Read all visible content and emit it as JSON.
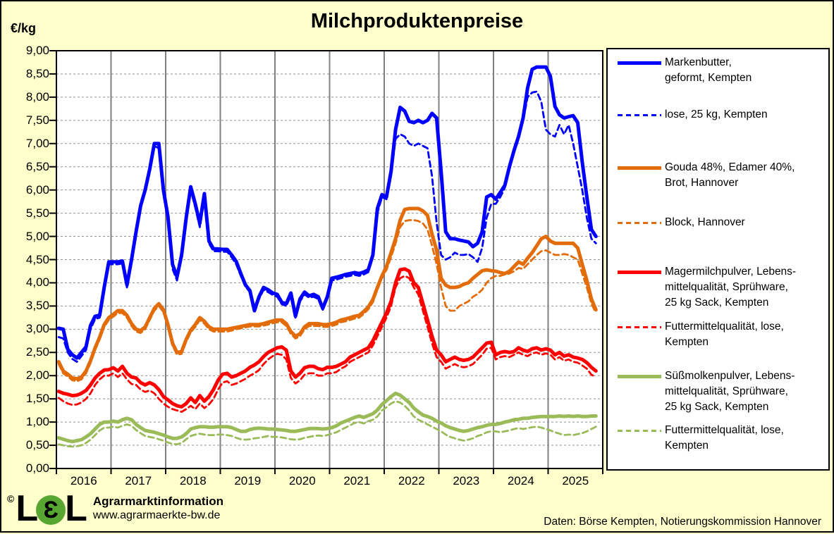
{
  "title": "Milchproduktenpreise",
  "y_axis": {
    "unit_label": "€/kg",
    "ticks": [
      "9,00",
      "8,50",
      "8,00",
      "7,50",
      "7,00",
      "6,50",
      "6,00",
      "5,50",
      "5,00",
      "4,50",
      "4,00",
      "3,50",
      "3,00",
      "2,50",
      "2,00",
      "1,50",
      "1,00",
      "0,50",
      "0,00"
    ]
  },
  "x_axis": {
    "ticks": [
      "2016",
      "2017",
      "2018",
      "2019",
      "2020",
      "2021",
      "2022",
      "2023",
      "2024",
      "2025"
    ]
  },
  "legend": {
    "items": [
      {
        "label": "Markenbutter,\ngeformt, Kempten",
        "color": "#0000FF",
        "style": "solid",
        "gap_after": 30
      },
      {
        "label": "lose, 25 kg, Kempten",
        "color": "#0000FF",
        "style": "dashed",
        "gap_after": 53
      },
      {
        "label": "Gouda 48%, Edamer 40%,\nBrot, Hannover",
        "color": "#E36C0A",
        "style": "solid",
        "gap_after": 34
      },
      {
        "label": "Block, Hannover",
        "color": "#E36C0A",
        "style": "dashed",
        "gap_after": 48
      },
      {
        "label": "Magermilchpulver, Lebens-\nmittelqualität, Sprühware,\n25 kg Sack, Kempten",
        "color": "#FF0000",
        "style": "solid",
        "gap_after": 12
      },
      {
        "label": "Futtermittelqualität, lose,\nKempten",
        "color": "#FF0000",
        "style": "dashed",
        "gap_after": 26
      },
      {
        "label": "Süßmolkenpulver, Lebens-\nmittelqualität, Sprühware,\n25 kg Sack, Kempten",
        "color": "#9BBB59",
        "style": "solid",
        "gap_after": 11
      },
      {
        "label": "Futtermittelqualität, lose,\nKempten",
        "color": "#9BBB59",
        "style": "dashed",
        "gap_after": 0
      }
    ]
  },
  "footer": {
    "copyright": "©",
    "logo_l1": "L",
    "logo_e": "Ɛ",
    "logo_l2": "L",
    "org": "Agrarmarktinformation",
    "url": "www.agrarmaerkte-bw.de",
    "source": "Daten: Börse Kempten, Notierungskommission  Hannover"
  },
  "chart_data": {
    "type": "line",
    "x_unit": "month",
    "x_start": "2016-01",
    "x_end": "2025-11",
    "x_years": [
      "2016",
      "2017",
      "2018",
      "2019",
      "2020",
      "2021",
      "2022",
      "2023",
      "2024",
      "2025"
    ],
    "ylim": [
      0,
      9
    ],
    "y_step": 0.5,
    "ylabel": "€/kg",
    "grid": {
      "horizontal": "dashed-gray",
      "vertical": "solid-gray-yearly"
    },
    "legend_position": "right",
    "series": [
      {
        "name": "Markenbutter, geformt, Kempten",
        "color": "#0000FF",
        "dash": false,
        "width": 5,
        "values": [
          3.02,
          3.0,
          2.57,
          2.45,
          2.38,
          2.5,
          2.62,
          3.08,
          3.28,
          3.3,
          3.9,
          4.45,
          4.45,
          4.45,
          4.47,
          3.95,
          4.5,
          5.1,
          5.66,
          6.0,
          6.45,
          7.0,
          7.0,
          6.0,
          5.43,
          4.4,
          4.13,
          4.6,
          5.4,
          6.07,
          5.7,
          5.28,
          5.92,
          4.9,
          4.73,
          4.73,
          4.72,
          4.72,
          4.6,
          4.46,
          4.2,
          3.96,
          3.83,
          3.4,
          3.7,
          3.9,
          3.85,
          3.78,
          3.75,
          3.58,
          3.55,
          3.78,
          3.28,
          3.65,
          3.8,
          3.72,
          3.75,
          3.7,
          3.45,
          3.7,
          4.1,
          4.12,
          4.15,
          4.18,
          4.2,
          4.22,
          4.2,
          4.23,
          4.28,
          4.6,
          5.6,
          5.9,
          5.85,
          6.4,
          7.3,
          7.78,
          7.7,
          7.48,
          7.45,
          7.5,
          7.45,
          7.5,
          7.65,
          7.55,
          6.4,
          5.1,
          4.95,
          4.95,
          4.92,
          4.9,
          4.88,
          4.78,
          4.85,
          5.1,
          5.85,
          5.9,
          5.8,
          5.95,
          6.1,
          6.5,
          6.85,
          7.15,
          7.55,
          8.2,
          8.6,
          8.65,
          8.65,
          8.65,
          8.45,
          7.8,
          7.62,
          7.55,
          7.58,
          7.6,
          7.45,
          6.6,
          5.85,
          5.15,
          5.0
        ]
      },
      {
        "name": "lose, 25 kg, Kempten",
        "color": "#0000FF",
        "dash": true,
        "width": 2.8,
        "values": [
          2.83,
          2.8,
          2.5,
          2.36,
          2.3,
          2.42,
          2.55,
          3.0,
          3.22,
          3.25,
          3.85,
          4.4,
          4.4,
          4.4,
          4.42,
          3.9,
          4.48,
          5.15,
          5.72,
          6.05,
          6.5,
          6.95,
          6.9,
          5.9,
          5.35,
          4.3,
          4.05,
          4.55,
          5.35,
          6.0,
          5.62,
          5.2,
          5.85,
          4.85,
          4.68,
          4.68,
          4.67,
          4.67,
          4.55,
          4.4,
          4.15,
          3.92,
          3.8,
          3.35,
          3.65,
          3.85,
          3.8,
          3.74,
          3.7,
          3.54,
          3.5,
          3.72,
          3.25,
          3.6,
          3.75,
          3.68,
          3.7,
          3.65,
          3.42,
          3.66,
          4.05,
          4.07,
          4.1,
          4.13,
          4.15,
          4.17,
          4.15,
          4.18,
          4.23,
          4.55,
          5.5,
          5.85,
          5.8,
          6.3,
          7.1,
          7.2,
          7.15,
          7.0,
          6.95,
          7.0,
          6.95,
          6.9,
          6.3,
          5.3,
          4.6,
          4.5,
          4.55,
          4.65,
          4.6,
          4.6,
          4.62,
          4.55,
          4.45,
          4.75,
          5.4,
          5.7,
          5.7,
          5.85,
          6.05,
          6.45,
          6.8,
          7.1,
          7.5,
          8.0,
          8.1,
          8.12,
          7.9,
          7.3,
          7.2,
          7.15,
          7.4,
          7.2,
          7.4,
          7.0,
          6.5,
          6.0,
          5.4,
          4.95,
          4.85
        ]
      },
      {
        "name": "Gouda 48%, Edamer 40%, Brot, Hannover",
        "color": "#E36C0A",
        "dash": false,
        "width": 5,
        "values": [
          2.3,
          2.1,
          2.03,
          1.95,
          1.93,
          1.97,
          2.1,
          2.32,
          2.6,
          2.83,
          3.1,
          3.25,
          3.32,
          3.4,
          3.4,
          3.3,
          3.12,
          3.0,
          2.97,
          3.05,
          3.25,
          3.45,
          3.55,
          3.42,
          3.1,
          2.7,
          2.5,
          2.52,
          2.78,
          2.98,
          3.1,
          3.25,
          3.17,
          3.05,
          3.0,
          3.0,
          3.0,
          3.0,
          3.02,
          3.04,
          3.06,
          3.08,
          3.1,
          3.1,
          3.1,
          3.12,
          3.15,
          3.18,
          3.2,
          3.2,
          3.12,
          2.95,
          2.85,
          2.9,
          3.05,
          3.12,
          3.12,
          3.12,
          3.1,
          3.1,
          3.12,
          3.15,
          3.2,
          3.22,
          3.25,
          3.28,
          3.3,
          3.38,
          3.48,
          3.64,
          3.9,
          4.15,
          4.35,
          4.65,
          4.95,
          5.35,
          5.58,
          5.6,
          5.6,
          5.6,
          5.55,
          5.45,
          5.05,
          4.7,
          4.1,
          3.95,
          3.9,
          3.9,
          3.92,
          3.97,
          4.0,
          4.1,
          4.18,
          4.26,
          4.28,
          4.26,
          4.25,
          4.22,
          4.2,
          4.25,
          4.35,
          4.45,
          4.4,
          4.53,
          4.65,
          4.8,
          4.95,
          5.0,
          4.9,
          4.85,
          4.85,
          4.85,
          4.85,
          4.85,
          4.75,
          4.4,
          4.05,
          3.65,
          3.42
        ]
      },
      {
        "name": "Block, Hannover",
        "color": "#E36C0A",
        "dash": true,
        "width": 2.8,
        "values": [
          2.25,
          2.05,
          1.98,
          1.9,
          1.88,
          1.92,
          2.05,
          2.27,
          2.55,
          2.78,
          3.05,
          3.2,
          3.27,
          3.35,
          3.35,
          3.25,
          3.07,
          2.95,
          2.92,
          3.0,
          3.2,
          3.4,
          3.5,
          3.37,
          3.05,
          2.65,
          2.45,
          2.47,
          2.73,
          2.93,
          3.05,
          3.2,
          3.12,
          3.0,
          2.95,
          2.95,
          2.95,
          2.95,
          2.97,
          3.0,
          3.02,
          3.04,
          3.06,
          3.06,
          3.06,
          3.08,
          3.1,
          3.13,
          3.15,
          3.15,
          3.07,
          2.9,
          2.8,
          2.85,
          3.0,
          3.07,
          3.07,
          3.07,
          3.05,
          3.05,
          3.07,
          3.1,
          3.15,
          3.17,
          3.2,
          3.23,
          3.25,
          3.33,
          3.43,
          3.58,
          3.85,
          4.1,
          4.28,
          4.55,
          4.85,
          5.2,
          5.33,
          5.35,
          5.35,
          5.33,
          5.28,
          5.15,
          4.8,
          4.4,
          3.9,
          3.5,
          3.4,
          3.4,
          3.5,
          3.55,
          3.6,
          3.7,
          3.76,
          3.85,
          4.0,
          4.1,
          4.15,
          4.15,
          4.18,
          4.2,
          4.25,
          4.32,
          4.3,
          4.4,
          4.5,
          4.6,
          4.68,
          4.7,
          4.65,
          4.6,
          4.6,
          4.62,
          4.6,
          4.55,
          4.5,
          4.2,
          3.9,
          3.55,
          3.35
        ]
      },
      {
        "name": "Magermilchpulver, Lebensmittelqualität, Sprühware, 25 kg Sack, Kempten",
        "color": "#FF0000",
        "dash": false,
        "width": 5,
        "values": [
          1.66,
          1.62,
          1.6,
          1.57,
          1.58,
          1.62,
          1.68,
          1.8,
          1.95,
          2.05,
          2.12,
          2.13,
          2.17,
          2.1,
          2.2,
          2.05,
          1.97,
          1.95,
          1.85,
          1.8,
          1.85,
          1.8,
          1.7,
          1.55,
          1.48,
          1.4,
          1.35,
          1.33,
          1.4,
          1.52,
          1.42,
          1.57,
          1.45,
          1.55,
          1.7,
          1.9,
          2.03,
          2.05,
          1.97,
          2.0,
          2.05,
          2.1,
          2.18,
          2.23,
          2.3,
          2.41,
          2.5,
          2.55,
          2.6,
          2.62,
          2.55,
          2.1,
          1.97,
          2.05,
          2.17,
          2.2,
          2.2,
          2.15,
          2.13,
          2.18,
          2.18,
          2.2,
          2.25,
          2.3,
          2.4,
          2.45,
          2.5,
          2.55,
          2.6,
          2.75,
          2.95,
          3.15,
          3.35,
          3.6,
          4.0,
          4.28,
          4.3,
          4.25,
          4.0,
          3.9,
          3.55,
          3.2,
          2.85,
          2.55,
          2.45,
          2.3,
          2.35,
          2.4,
          2.35,
          2.33,
          2.35,
          2.4,
          2.5,
          2.6,
          2.7,
          2.72,
          2.45,
          2.5,
          2.52,
          2.5,
          2.52,
          2.6,
          2.55,
          2.52,
          2.58,
          2.6,
          2.55,
          2.58,
          2.55,
          2.45,
          2.5,
          2.42,
          2.45,
          2.4,
          2.38,
          2.35,
          2.28,
          2.18,
          2.1
        ]
      },
      {
        "name": "Futtermittelqualität, lose, Kempten (Magermilchpulver)",
        "color": "#FF0000",
        "dash": true,
        "width": 2.8,
        "values": [
          1.52,
          1.45,
          1.4,
          1.37,
          1.38,
          1.42,
          1.5,
          1.62,
          1.8,
          1.92,
          2.0,
          2.0,
          2.05,
          1.97,
          2.05,
          1.92,
          1.82,
          1.8,
          1.7,
          1.65,
          1.68,
          1.62,
          1.5,
          1.4,
          1.33,
          1.28,
          1.25,
          1.22,
          1.28,
          1.35,
          1.28,
          1.4,
          1.3,
          1.38,
          1.5,
          1.7,
          1.85,
          1.88,
          1.8,
          1.83,
          1.88,
          1.93,
          2.0,
          2.05,
          2.12,
          2.25,
          2.35,
          2.42,
          2.47,
          2.45,
          2.35,
          1.95,
          1.83,
          1.9,
          2.02,
          2.05,
          2.05,
          2.0,
          2.0,
          2.05,
          2.05,
          2.08,
          2.15,
          2.2,
          2.3,
          2.35,
          2.4,
          2.45,
          2.5,
          2.65,
          2.85,
          3.05,
          3.25,
          3.5,
          3.9,
          4.1,
          4.15,
          4.1,
          3.9,
          3.75,
          3.4,
          3.05,
          2.7,
          2.4,
          2.3,
          2.15,
          2.2,
          2.25,
          2.2,
          2.18,
          2.2,
          2.25,
          2.35,
          2.45,
          2.58,
          2.6,
          2.35,
          2.4,
          2.42,
          2.4,
          2.45,
          2.5,
          2.45,
          2.42,
          2.48,
          2.5,
          2.45,
          2.48,
          2.45,
          2.35,
          2.4,
          2.32,
          2.35,
          2.3,
          2.28,
          2.22,
          2.15,
          2.02,
          1.97
        ]
      },
      {
        "name": "Süßmolkenpulver, Lebensmittelqualität, Sprühware, 25 kg Sack, Kempten",
        "color": "#9BBB59",
        "dash": false,
        "width": 5,
        "values": [
          0.66,
          0.63,
          0.6,
          0.58,
          0.6,
          0.62,
          0.68,
          0.75,
          0.85,
          0.95,
          1.0,
          1.0,
          1.02,
          1.0,
          1.05,
          1.08,
          1.05,
          0.95,
          0.88,
          0.82,
          0.8,
          0.78,
          0.75,
          0.72,
          0.68,
          0.65,
          0.65,
          0.68,
          0.75,
          0.85,
          0.88,
          0.9,
          0.9,
          0.89,
          0.89,
          0.9,
          0.9,
          0.9,
          0.88,
          0.84,
          0.8,
          0.8,
          0.84,
          0.86,
          0.87,
          0.86,
          0.85,
          0.85,
          0.84,
          0.83,
          0.82,
          0.8,
          0.8,
          0.82,
          0.84,
          0.86,
          0.86,
          0.86,
          0.85,
          0.86,
          0.88,
          0.92,
          0.98,
          1.02,
          1.06,
          1.1,
          1.13,
          1.1,
          1.14,
          1.18,
          1.26,
          1.38,
          1.46,
          1.55,
          1.62,
          1.58,
          1.5,
          1.42,
          1.3,
          1.22,
          1.15,
          1.12,
          1.08,
          1.02,
          0.98,
          0.92,
          0.88,
          0.85,
          0.82,
          0.8,
          0.82,
          0.85,
          0.88,
          0.9,
          0.93,
          0.95,
          0.95,
          0.97,
          1.0,
          1.02,
          1.05,
          1.06,
          1.08,
          1.08,
          1.1,
          1.11,
          1.12,
          1.12,
          1.12,
          1.12,
          1.13,
          1.12,
          1.13,
          1.12,
          1.13,
          1.12,
          1.12,
          1.13,
          1.13
        ]
      },
      {
        "name": "Futtermittelqualität, lose, Kempten (Süßmolkenpulver)",
        "color": "#9BBB59",
        "dash": true,
        "width": 2.8,
        "values": [
          0.52,
          0.5,
          0.48,
          0.47,
          0.48,
          0.5,
          0.55,
          0.62,
          0.72,
          0.82,
          0.88,
          0.88,
          0.9,
          0.88,
          0.92,
          0.95,
          0.92,
          0.83,
          0.76,
          0.7,
          0.68,
          0.66,
          0.63,
          0.6,
          0.56,
          0.53,
          0.52,
          0.55,
          0.63,
          0.7,
          0.73,
          0.75,
          0.73,
          0.72,
          0.72,
          0.73,
          0.73,
          0.72,
          0.7,
          0.66,
          0.63,
          0.62,
          0.63,
          0.65,
          0.66,
          0.68,
          0.7,
          0.68,
          0.68,
          0.67,
          0.65,
          0.63,
          0.62,
          0.63,
          0.66,
          0.68,
          0.7,
          0.71,
          0.7,
          0.72,
          0.75,
          0.78,
          0.83,
          0.88,
          0.93,
          0.98,
          1.0,
          0.97,
          1.02,
          1.05,
          1.12,
          1.25,
          1.32,
          1.4,
          1.45,
          1.42,
          1.35,
          1.25,
          1.12,
          1.05,
          1.0,
          0.95,
          0.9,
          0.85,
          0.8,
          0.73,
          0.68,
          0.65,
          0.62,
          0.6,
          0.62,
          0.65,
          0.7,
          0.73,
          0.78,
          0.8,
          0.8,
          0.78,
          0.8,
          0.82,
          0.85,
          0.87,
          0.85,
          0.87,
          0.89,
          0.9,
          0.88,
          0.85,
          0.82,
          0.78,
          0.75,
          0.72,
          0.73,
          0.72,
          0.74,
          0.76,
          0.8,
          0.85,
          0.9
        ]
      }
    ]
  }
}
